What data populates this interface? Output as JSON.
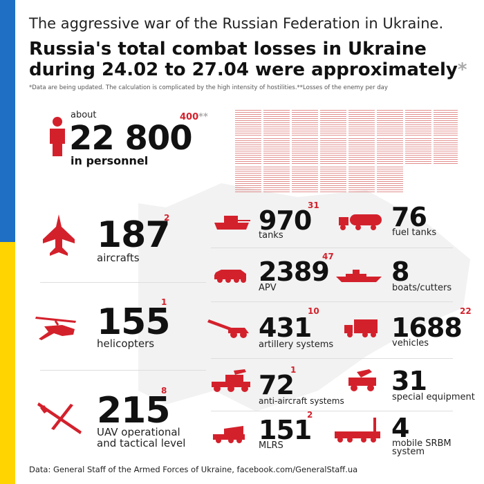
{
  "header": {
    "subtitle": "The aggressive war of the Russian Federation in Ukraine.",
    "title_line1": "Russia's total combat losses in Ukraine",
    "title_line2": "during 24.02 to 27.04 were approximately",
    "title_star": "*",
    "note": "*Data are being updated. The calculation is complicated by the high intensity of hostilities.**Losses of the enemy per day"
  },
  "personnel": {
    "about": "about",
    "value": "22 800",
    "label": "in personnel",
    "delta": "400",
    "delta_mark": "**"
  },
  "left_items": [
    {
      "value": "187",
      "delta": "2",
      "label": "aircrafts",
      "icon": "fighter-jet-icon"
    },
    {
      "value": "155",
      "delta": "1",
      "label": "helicopters",
      "icon": "helicopter-icon"
    },
    {
      "value": "215",
      "delta": "8",
      "label": "UAV operational and tactical level",
      "icon": "drone-icon"
    }
  ],
  "mid_items": [
    {
      "value": "970",
      "delta": "31",
      "label": "tanks",
      "icon": "tank-icon"
    },
    {
      "value": "2389",
      "delta": "47",
      "label": "APV",
      "icon": "apv-icon"
    },
    {
      "value": "431",
      "delta": "10",
      "label": "artillery systems",
      "icon": "artillery-icon"
    },
    {
      "value": "72",
      "delta": "1",
      "label": "anti-aircraft systems",
      "icon": "anti-aircraft-icon"
    },
    {
      "value": "151",
      "delta": "2",
      "label": "MLRS",
      "icon": "mlrs-icon"
    }
  ],
  "right_items": [
    {
      "value": "76",
      "delta": "",
      "label": "fuel tanks",
      "icon": "fuel-tank-icon"
    },
    {
      "value": "8",
      "delta": "",
      "label": "boats/cutters",
      "icon": "boat-icon"
    },
    {
      "value": "1688",
      "delta": "22",
      "label": "vehicles",
      "icon": "truck-icon"
    },
    {
      "value": "31",
      "delta": "",
      "label": "special equipment",
      "icon": "special-equipment-icon"
    },
    {
      "value": "4",
      "delta": "",
      "label": "mobile SRBM system",
      "icon": "srbm-launcher-icon"
    }
  ],
  "footer": {
    "source": "Data: General Staff of the Armed Forces of Ukraine, facebook.com/GeneralStaff.ua"
  },
  "colors": {
    "accent": "#d3212c",
    "flag_blue": "#1f6fc4",
    "flag_yellow": "#ffd400"
  }
}
